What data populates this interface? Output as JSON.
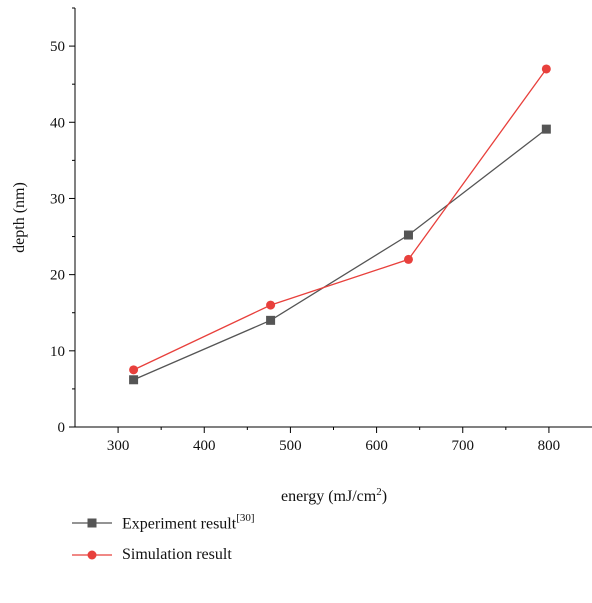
{
  "chart_data": {
    "type": "line",
    "xlabel_base": "energy (mJ/cm",
    "xlabel_sup": "2",
    "xlabel_tail": ")",
    "ylabel": "depth (nm)",
    "xlim": [
      250,
      850
    ],
    "ylim": [
      0,
      55
    ],
    "xticks": [
      300,
      400,
      500,
      600,
      700,
      800
    ],
    "yticks": [
      0,
      10,
      20,
      30,
      40,
      50
    ],
    "legend_position": "bottom",
    "series": [
      {
        "name": "Experiment result",
        "name_sup": "[30]",
        "color": "#555555",
        "marker": "square",
        "x": [
          318,
          477,
          637,
          797
        ],
        "y": [
          6.2,
          14.0,
          25.2,
          39.1
        ]
      },
      {
        "name": "Simulation result",
        "name_sup": "",
        "color": "#e8403c",
        "marker": "circle",
        "x": [
          318,
          477,
          637,
          797
        ],
        "y": [
          7.5,
          16.0,
          22.0,
          47.0
        ]
      }
    ]
  }
}
